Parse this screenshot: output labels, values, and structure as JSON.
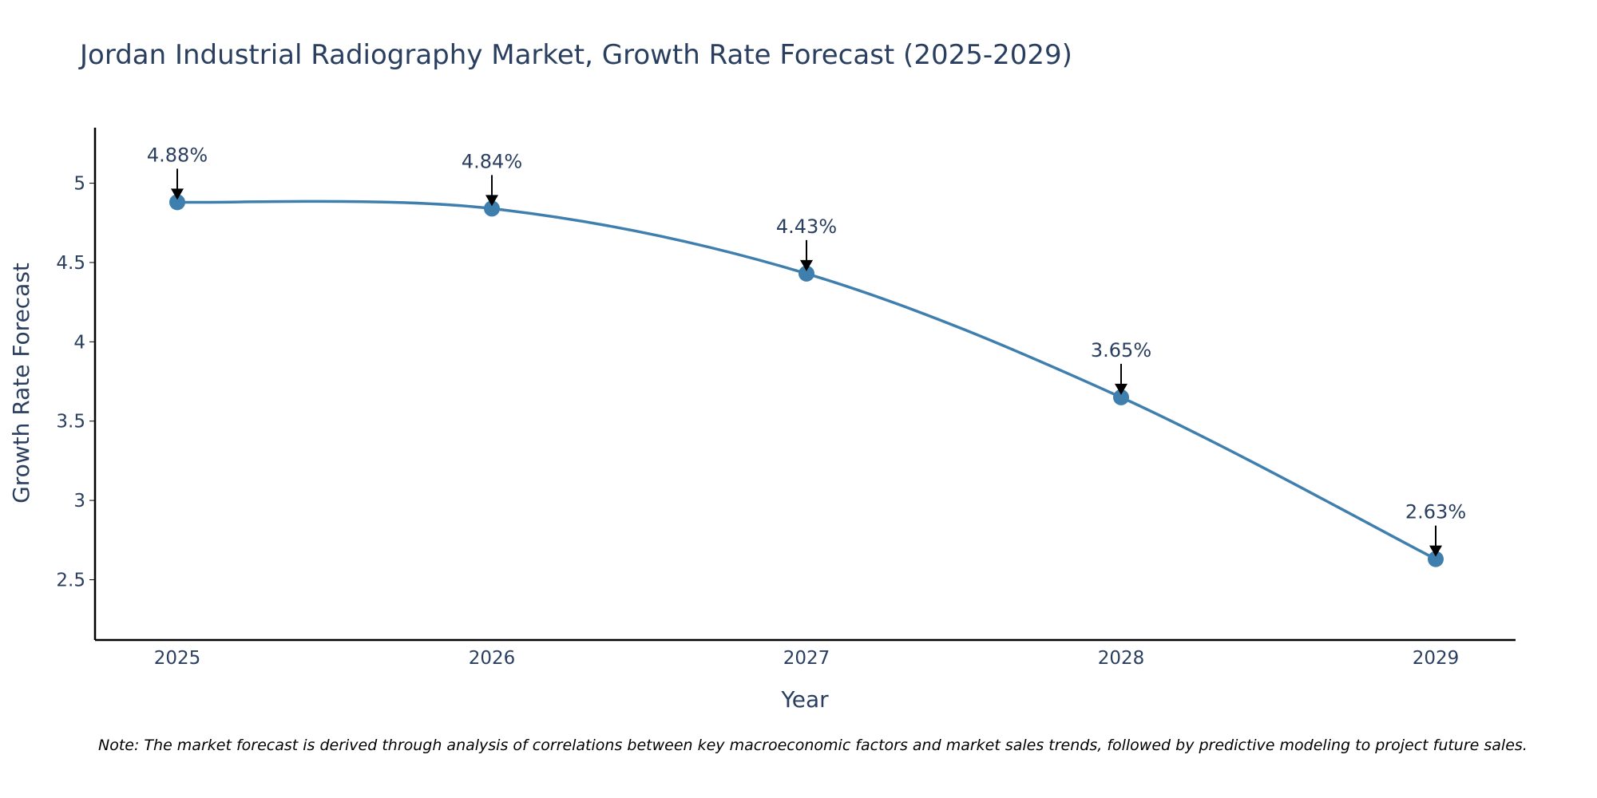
{
  "colors": {
    "line": "#3f7fae",
    "marker": "#3f7fae",
    "axis": "#000000",
    "arrow": "#000000",
    "text": "#2a3f5f",
    "note": "#000000"
  },
  "chart_data": {
    "type": "line",
    "title": "Jordan Industrial Radiography Market, Growth Rate Forecast (2025-2029)",
    "xlabel": "Year",
    "ylabel": "Growth Rate Forecast",
    "categories": [
      "2025",
      "2026",
      "2027",
      "2028",
      "2029"
    ],
    "series": [
      {
        "name": "Growth Rate Forecast",
        "values": [
          4.88,
          4.84,
          4.43,
          3.65,
          2.63
        ],
        "labels": [
          "4.88%",
          "4.84%",
          "4.43%",
          "3.65%",
          "2.63%"
        ]
      }
    ],
    "yticks": [
      2.5,
      3,
      3.5,
      4,
      4.5,
      5
    ],
    "ytick_labels": [
      "2.5",
      "3",
      "3.5",
      "4",
      "4.5",
      "5"
    ],
    "ylim": [
      2.12,
      5.35
    ],
    "grid": false,
    "legend": "none",
    "line_shape": "spline"
  },
  "note": "Note: The market forecast is derived through analysis of correlations between key macroeconomic factors and market sales trends, followed by predictive modeling to project future sales."
}
